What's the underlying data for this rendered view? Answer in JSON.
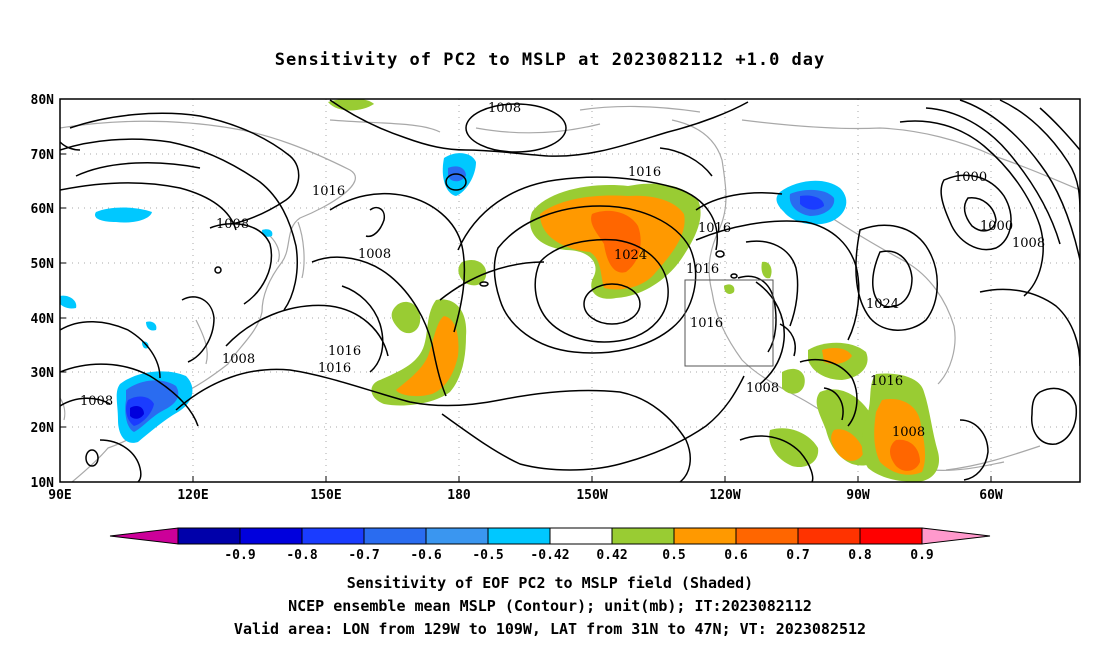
{
  "title": "Sensitivity of PC2 to MSLP at 2023082112 +1.0 day",
  "axes": {
    "lat_ticks": [
      "80N",
      "70N",
      "60N",
      "50N",
      "40N",
      "30N",
      "20N",
      "10N"
    ],
    "lon_ticks": [
      "90E",
      "120E",
      "150E",
      "180",
      "150W",
      "120W",
      "90W",
      "60W"
    ]
  },
  "colorbar": {
    "labels": [
      "-0.9",
      "-0.8",
      "-0.7",
      "-0.6",
      "-0.5",
      "-0.42",
      "0.42",
      "0.5",
      "0.6",
      "0.7",
      "0.8",
      "0.9"
    ],
    "colors": [
      "#cc0099",
      "#0000aa",
      "#0000dd",
      "#1a3cff",
      "#2a6cf0",
      "#3a96f0",
      "#00c8ff",
      "#ffffff",
      "#99cc33",
      "#ff9900",
      "#ff6600",
      "#ff3300",
      "#ff0000",
      "#ff99cc"
    ]
  },
  "contour_labels": [
    "1008",
    "1016",
    "1008",
    "1008",
    "1016",
    "1024",
    "1016",
    "1016",
    "1016",
    "1000",
    "1000",
    "1008",
    "1024",
    "1016",
    "1008",
    "1016",
    "1008",
    "1008",
    "1008",
    "1016"
  ],
  "captions": {
    "line1": "Sensitivity of EOF PC2 to MSLP field (Shaded)",
    "line2": "NCEP ensemble mean MSLP (Contour); unit(mb); IT:2023082112",
    "line3": "Valid area: LON from 129W to 109W, LAT from 31N to 47N; VT: 2023082512"
  }
}
